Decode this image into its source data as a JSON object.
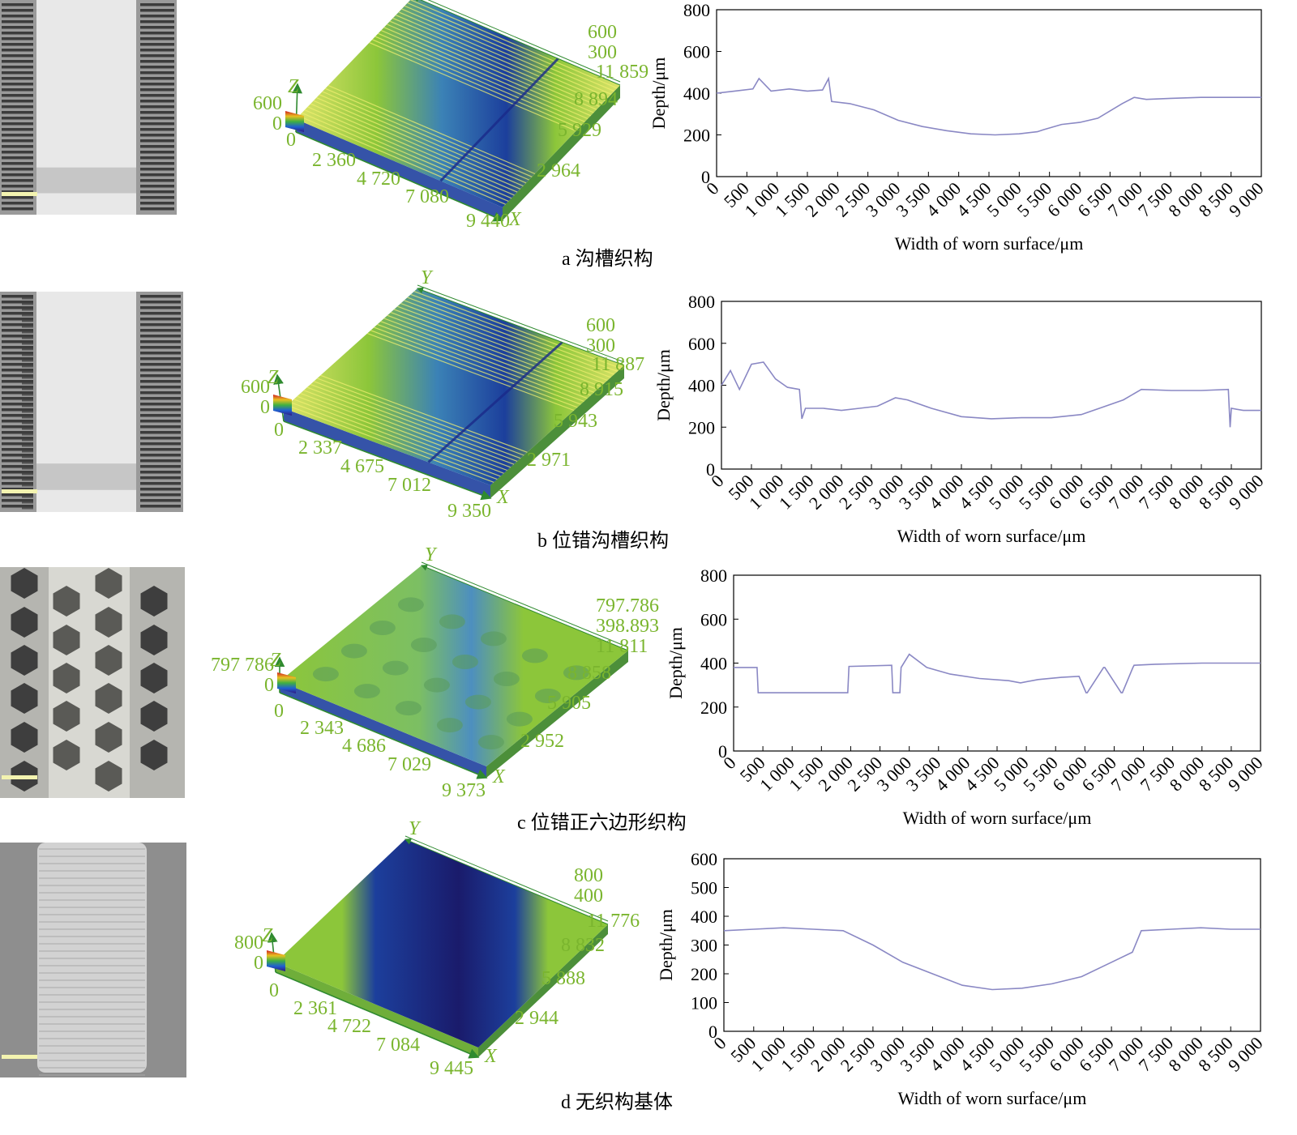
{
  "colors": {
    "label_green": "#7ab52e",
    "arrow_green": "#2f8a2f",
    "profile_line": "#8a88c4",
    "surface_green": "#8cc63a",
    "surface_blue": "#1c3f9c",
    "surface_navy": "#1a1b6b",
    "surface_yellow": "#dde46a",
    "photo_gray": "#9a9a9a",
    "photo_light": "#e8e8e8",
    "photo_dark": "#3c3c3c"
  },
  "panels": [
    {
      "caption": "a  沟槽织构",
      "photo": {
        "pattern": "grooves"
      },
      "surface": {
        "pattern": "grooves",
        "z_scale": [
          "600",
          "0"
        ],
        "axis_names": {
          "x": "X",
          "y": "Y",
          "z": "Z"
        },
        "x_ticks": [
          "0",
          "2 360",
          "4 720",
          "7 080",
          "9 440"
        ],
        "y_ticks": [
          "600",
          "300",
          "11 859",
          "8 894",
          "5 929",
          "2 964"
        ]
      }
    },
    {
      "caption": "b  位错沟槽织构",
      "photo": {
        "pattern": "staggered-grooves"
      },
      "surface": {
        "pattern": "staggered-grooves",
        "z_scale": [
          "600",
          "0"
        ],
        "axis_names": {
          "x": "X",
          "y": "Y",
          "z": "Z"
        },
        "x_ticks": [
          "0",
          "2 337",
          "4 675",
          "7 012",
          "9 350"
        ],
        "y_ticks": [
          "600",
          "300",
          "11 887",
          "8 915",
          "5 943",
          "2 971"
        ]
      }
    },
    {
      "caption": "c  位错正六边形织构",
      "photo": {
        "pattern": "hexagons"
      },
      "surface": {
        "pattern": "hexagons",
        "z_scale": [
          "797 786",
          "0"
        ],
        "axis_names": {
          "x": "X",
          "y": "Y",
          "z": "Z"
        },
        "x_ticks": [
          "0",
          "2 343",
          "4 686",
          "7 029",
          "9 373"
        ],
        "y_ticks": [
          "797.786",
          "398.893",
          "11 811",
          "8 858",
          "5 905",
          "2 952"
        ]
      }
    },
    {
      "caption": "d  无织构基体",
      "photo": {
        "pattern": "smooth"
      },
      "surface": {
        "pattern": "smooth",
        "z_scale": [
          "800",
          "0"
        ],
        "axis_names": {
          "x": "X",
          "y": "Y",
          "z": "Z"
        },
        "x_ticks": [
          "0",
          "2 361",
          "4 722",
          "7 084",
          "9 445"
        ],
        "y_ticks": [
          "800",
          "400",
          "11 776",
          "8 832",
          "5 888",
          "2 944"
        ]
      }
    }
  ],
  "chart_data": [
    {
      "type": "line",
      "xlabel": "Width of worn surface/μm",
      "ylabel": "Depth/μm",
      "xlim": [
        0,
        9000
      ],
      "ylim": [
        0,
        800
      ],
      "x_ticks": [
        "0",
        "500",
        "1 000",
        "1 500",
        "2 000",
        "2 500",
        "3 000",
        "3 500",
        "4 000",
        "4 500",
        "5 000",
        "5 500",
        "6 000",
        "6 500",
        "7 000",
        "7 500",
        "8 000",
        "8 500",
        "9 000"
      ],
      "y_ticks": [
        "0",
        "200",
        "400",
        "600",
        "800"
      ],
      "series": [
        {
          "x": [
            0,
            300,
            600,
            700,
            900,
            1200,
            1500,
            1750,
            1850,
            1900,
            2200,
            2600,
            3000,
            3400,
            3800,
            4200,
            4600,
            5000,
            5300,
            5400,
            5700,
            6000,
            6300,
            6700,
            6900,
            7100,
            7500,
            8000,
            8500,
            9000
          ],
          "y": [
            400,
            410,
            420,
            470,
            410,
            420,
            410,
            415,
            470,
            360,
            350,
            320,
            270,
            240,
            220,
            205,
            200,
            205,
            215,
            225,
            250,
            260,
            280,
            350,
            380,
            370,
            375,
            380,
            380,
            380
          ]
        }
      ]
    },
    {
      "type": "line",
      "xlabel": "Width of worn surface/μm",
      "ylabel": "Depth/μm",
      "xlim": [
        0,
        9000
      ],
      "ylim": [
        0,
        800
      ],
      "x_ticks": [
        "0",
        "500",
        "1 000",
        "1 500",
        "2 000",
        "2 500",
        "3 000",
        "3 500",
        "4 000",
        "4 500",
        "5 000",
        "5 500",
        "6 000",
        "6 500",
        "7 000",
        "7 500",
        "8 000",
        "8 500",
        "9 000"
      ],
      "y_ticks": [
        "0",
        "200",
        "400",
        "600",
        "800"
      ],
      "series": [
        {
          "x": [
            0,
            150,
            300,
            500,
            700,
            900,
            1100,
            1300,
            1340,
            1400,
            1700,
            2000,
            2300,
            2600,
            2900,
            3100,
            3500,
            4000,
            4500,
            5000,
            5500,
            6000,
            6300,
            6700,
            7000,
            7500,
            8000,
            8450,
            8480,
            8500,
            8700,
            9000
          ],
          "y": [
            400,
            470,
            380,
            500,
            510,
            430,
            390,
            380,
            240,
            290,
            290,
            280,
            290,
            300,
            340,
            330,
            290,
            250,
            240,
            245,
            245,
            260,
            290,
            330,
            380,
            375,
            375,
            380,
            200,
            290,
            280,
            280
          ]
        }
      ]
    },
    {
      "type": "line",
      "xlabel": "Width of worn surface/μm",
      "ylabel": "Depth/μm",
      "xlim": [
        0,
        9000
      ],
      "ylim": [
        0,
        800
      ],
      "x_ticks": [
        "0",
        "500",
        "1 000",
        "1 500",
        "2 000",
        "2 500",
        "3 000",
        "3 500",
        "4 000",
        "4 500",
        "5 000",
        "5 500",
        "6 000",
        "6 500",
        "7 000",
        "7 500",
        "8 000",
        "8 500",
        "9 000"
      ],
      "y_ticks": [
        "0",
        "200",
        "400",
        "600",
        "800"
      ],
      "series": [
        {
          "x": [
            0,
            400,
            420,
            1950,
            1970,
            2700,
            2720,
            2840,
            2860,
            3000,
            3300,
            3700,
            4200,
            4700,
            4900,
            5200,
            5600,
            5900,
            6020,
            6040,
            6320,
            6340,
            6620,
            6640,
            6820,
            6840,
            7200,
            8000,
            9000
          ],
          "y": [
            380,
            380,
            265,
            265,
            385,
            390,
            265,
            265,
            380,
            440,
            380,
            350,
            330,
            320,
            310,
            325,
            335,
            340,
            265,
            265,
            380,
            380,
            265,
            265,
            380,
            390,
            395,
            400,
            400
          ]
        }
      ]
    },
    {
      "type": "line",
      "xlabel": "Width of worn surface/μm",
      "ylabel": "Depth/μm",
      "xlim": [
        0,
        9000
      ],
      "ylim": [
        0,
        600
      ],
      "x_ticks": [
        "0",
        "500",
        "1 000",
        "1 500",
        "2 000",
        "2 500",
        "3 000",
        "3 500",
        "4 000",
        "4 500",
        "5 000",
        "5 500",
        "6 000",
        "6 500",
        "7 000",
        "7 500",
        "8 000",
        "8 500",
        "9 000"
      ],
      "y_ticks": [
        "0",
        "100",
        "200",
        "300",
        "400",
        "500",
        "600"
      ],
      "series": [
        {
          "x": [
            0,
            500,
            1000,
            1500,
            2000,
            2500,
            3000,
            3500,
            4000,
            4500,
            5000,
            5500,
            6000,
            6500,
            6850,
            7000,
            7500,
            8000,
            8500,
            9000
          ],
          "y": [
            350,
            355,
            360,
            355,
            350,
            300,
            240,
            200,
            160,
            145,
            150,
            165,
            190,
            240,
            275,
            350,
            355,
            360,
            355,
            355
          ]
        }
      ]
    }
  ]
}
